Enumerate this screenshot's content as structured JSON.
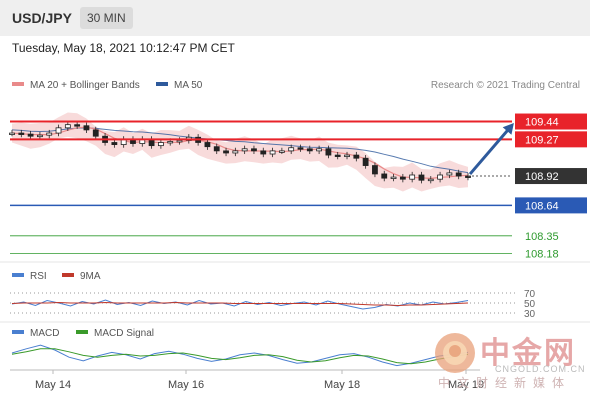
{
  "header": {
    "symbol": "USD/JPY",
    "timeframe": "30 MIN",
    "datetime": "Tuesday, May 18, 2021 10:12:47 PM CET",
    "credit": "Research © 2021 Trading Central"
  },
  "legends": {
    "price_ma20": "MA 20 + Bollinger Bands",
    "price_ma50": "MA 50",
    "rsi": "RSI",
    "rsi_ma": "9MA",
    "macd": "MACD",
    "macd_signal": "MACD Signal"
  },
  "colors": {
    "resistance": "#e8232a",
    "support": "#2a5ab5",
    "support_green": "#2e9a2e",
    "arrow": "#2e5a9c",
    "ma20": "#e98a8a",
    "ma50": "#2e5a9c",
    "bollinger_fill": "#f6cfcf",
    "rsi": "#4a7fd0",
    "rsi_ma": "#c0392b",
    "macd": "#4a7fd0",
    "macd_signal": "#3a9a2a",
    "candle": "#222222"
  },
  "watermark": {
    "text": "中金网",
    "url": "CNGOLD.COM.CN",
    "tagline": "中文财经新媒体"
  },
  "chart_data": [
    {
      "type": "candlestick",
      "panel": "price",
      "x_labels": [
        "May 14",
        "May 16",
        "May 18",
        "May 19"
      ],
      "ylim": [
        108.1,
        109.55
      ],
      "close_path": [
        109.33,
        109.32,
        109.3,
        109.31,
        109.33,
        109.38,
        109.41,
        109.4,
        109.36,
        109.3,
        109.24,
        109.22,
        109.27,
        109.23,
        109.27,
        109.21,
        109.24,
        109.25,
        109.26,
        109.29,
        109.24,
        109.2,
        109.16,
        109.14,
        109.16,
        109.18,
        109.16,
        109.13,
        109.16,
        109.16,
        109.19,
        109.18,
        109.16,
        109.18,
        109.12,
        109.11,
        109.12,
        109.09,
        109.02,
        108.94,
        108.9,
        108.91,
        108.89,
        108.93,
        108.88,
        108.89,
        108.93,
        108.95,
        108.92,
        108.91
      ],
      "resistance": [
        109.44,
        109.27
      ],
      "pivot": 108.92,
      "support": [
        108.64,
        108.35,
        108.18
      ],
      "projection": {
        "from": 108.92,
        "to": 109.44
      }
    },
    {
      "type": "line",
      "panel": "RSI",
      "levels": [
        70,
        50,
        30
      ],
      "series": [
        {
          "name": "RSI",
          "values": [
            48,
            52,
            45,
            55,
            50,
            44,
            53,
            48,
            56,
            47,
            51,
            45,
            54,
            49,
            52,
            46,
            55,
            48,
            50,
            44,
            53,
            47,
            51,
            45,
            49,
            52,
            46,
            54,
            48,
            43,
            38,
            41,
            47,
            44,
            50,
            46,
            52,
            48,
            51,
            55
          ]
        },
        {
          "name": "9MA",
          "values": [
            49,
            50,
            50,
            50,
            51,
            50,
            50,
            50,
            51,
            50,
            50,
            50,
            50,
            50,
            51,
            50,
            50,
            50,
            50,
            49,
            49,
            49,
            49,
            49,
            49,
            49,
            49,
            49,
            49,
            48,
            47,
            46,
            46,
            45,
            46,
            46,
            47,
            48,
            49,
            50
          ]
        }
      ]
    },
    {
      "type": "line",
      "panel": "MACD",
      "series": [
        {
          "name": "MACD",
          "values": [
            0.05,
            0.12,
            0.18,
            0.1,
            -0.02,
            -0.08,
            0.0,
            0.06,
            0.02,
            -0.05,
            0.04,
            0.08,
            0.03,
            -0.04,
            -0.09,
            -0.05,
            0.02,
            0.05,
            0.01,
            -0.06,
            -0.12,
            -0.1,
            -0.04,
            0.02,
            0.04,
            -0.02,
            -0.1,
            -0.16,
            -0.12,
            -0.06,
            0.0,
            0.03,
            0.06
          ]
        },
        {
          "name": "MACD Signal",
          "values": [
            0.03,
            0.07,
            0.12,
            0.12,
            0.07,
            0.01,
            -0.02,
            0.01,
            0.03,
            0.0,
            0.01,
            0.04,
            0.05,
            0.01,
            -0.04,
            -0.06,
            -0.03,
            0.01,
            0.02,
            -0.01,
            -0.07,
            -0.1,
            -0.08,
            -0.03,
            0.01,
            0.0,
            -0.05,
            -0.11,
            -0.13,
            -0.1,
            -0.05,
            -0.01,
            0.03
          ]
        }
      ]
    }
  ]
}
